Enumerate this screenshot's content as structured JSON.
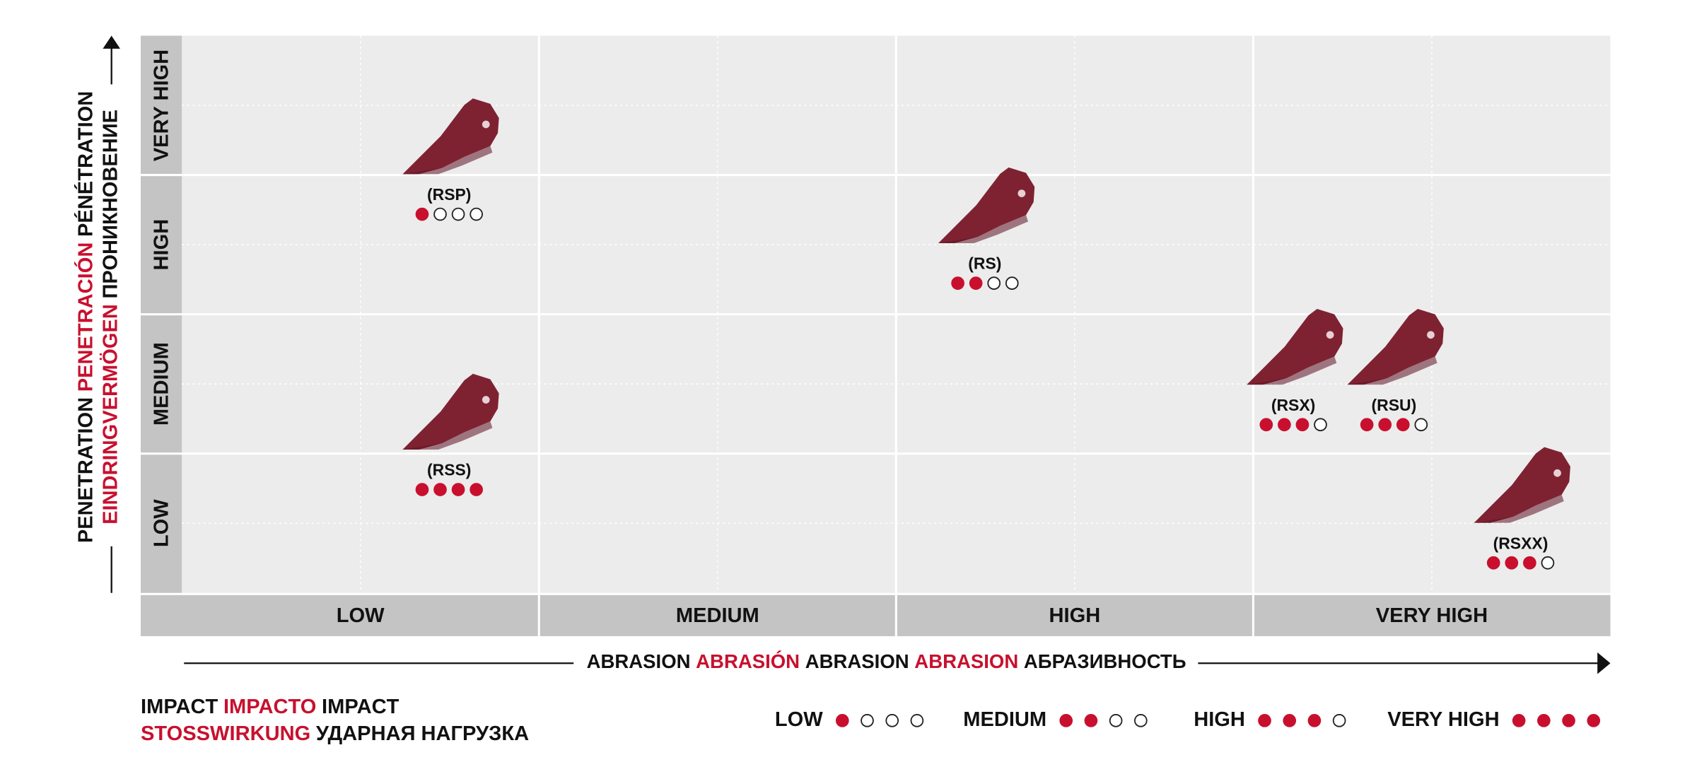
{
  "y_axis_title": [
    [
      {
        "text": "PENETRATION",
        "color": "#111111"
      },
      {
        "text": "PENETRACIÓN",
        "color": "#c8102e"
      },
      {
        "text": "PÉNÉTRATION",
        "color": "#111111"
      }
    ],
    [
      {
        "text": "EINDRINGVERMÖGEN",
        "color": "#c8102e"
      },
      {
        "text": "ПРОНИКНОВЕНИЕ",
        "color": "#111111"
      }
    ]
  ],
  "x_axis_title": [
    [
      {
        "text": "ABRASION",
        "color": "#111111"
      },
      {
        "text": "ABRASIÓN",
        "color": "#c8102e"
      },
      {
        "text": "ABRASION",
        "color": "#111111"
      },
      {
        "text": "ABRASION",
        "color": "#c8102e"
      },
      {
        "text": "АБРАЗИВНОСТЬ",
        "color": "#111111"
      }
    ]
  ],
  "impact_title": [
    [
      {
        "text": "IMPACT",
        "color": "#111111"
      },
      {
        "text": "IMPACTO",
        "color": "#c8102e"
      },
      {
        "text": "IMPACT",
        "color": "#111111"
      }
    ],
    [
      {
        "text": "STOSSWIRKUNG",
        "color": "#c8102e"
      },
      {
        "text": "УДАРНАЯ НАГРУЗКА",
        "color": "#111111"
      }
    ]
  ],
  "abrasion_levels": [
    "LOW",
    "MEDIUM",
    "HIGH",
    "VERY HIGH"
  ],
  "penetration_levels": [
    "LOW",
    "MEDIUM",
    "HIGH",
    "VERY HIGH"
  ],
  "impact_max": 4,
  "items": [
    {
      "label": "(RSP)",
      "abrasion": "LOW",
      "penetration": "VERY HIGH",
      "impact": 1
    },
    {
      "label": "(RS)",
      "abrasion": "HIGH",
      "penetration": "HIGH",
      "impact": 2
    },
    {
      "label": "(RSS)",
      "abrasion": "LOW",
      "penetration": "MEDIUM",
      "impact": 4
    },
    {
      "label": "(RSX)",
      "abrasion": "VERY HIGH",
      "penetration": "MEDIUM",
      "impact": 3
    },
    {
      "label": "(RSU)",
      "abrasion": "VERY HIGH",
      "penetration": "MEDIUM",
      "impact": 3
    },
    {
      "label": "(RSXX)",
      "abrasion": "VERY HIGH",
      "penetration": "LOW",
      "impact": 3
    }
  ],
  "impact_legend": [
    {
      "label": "LOW",
      "impact": 1
    },
    {
      "label": "MEDIUM",
      "impact": 2
    },
    {
      "label": "HIGH",
      "impact": 3
    },
    {
      "label": "VERY HIGH",
      "impact": 4
    }
  ],
  "accent_color": "#c8102e",
  "tooth_color": "#7e2232"
}
